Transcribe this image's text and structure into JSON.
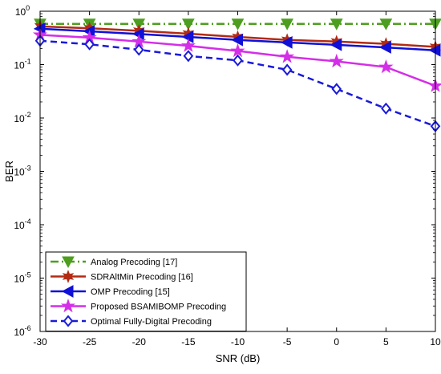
{
  "chart_data": {
    "type": "line",
    "xlabel": "SNR (dB)",
    "ylabel": "BER",
    "xlim": [
      -30,
      10
    ],
    "ylim": [
      1e-06,
      1
    ],
    "yscale": "log",
    "grid": false,
    "legend_position": "bottom-left",
    "x": [
      -30,
      -25,
      -20,
      -15,
      -10,
      -5,
      0,
      5,
      10
    ],
    "x_ticks": [
      "-30",
      "-25",
      "-20",
      "-15",
      "-10",
      "-5",
      "0",
      "5",
      "10"
    ],
    "y_ticks": [
      {
        "value": 1e-06,
        "base": "10",
        "exp": "-6"
      },
      {
        "value": 1e-05,
        "base": "10",
        "exp": "-5"
      },
      {
        "value": 0.0001,
        "base": "10",
        "exp": "-4"
      },
      {
        "value": 0.001,
        "base": "10",
        "exp": "-3"
      },
      {
        "value": 0.01,
        "base": "10",
        "exp": "-2"
      },
      {
        "value": 0.1,
        "base": "10",
        "exp": "-1"
      },
      {
        "value": 1,
        "base": "10",
        "exp": "0"
      }
    ],
    "series": [
      {
        "name": "Analog Precoding [17]",
        "color": "#4d9e1f",
        "marker": "triangle-down",
        "dash": "dashdot",
        "values": [
          0.58,
          0.58,
          0.58,
          0.58,
          0.58,
          0.58,
          0.58,
          0.58,
          0.58
        ]
      },
      {
        "name": "SDRAltMin Precoding [16]",
        "color": "#b22a14",
        "marker": "hexagram",
        "dash": "solid",
        "values": [
          0.52,
          0.48,
          0.43,
          0.38,
          0.33,
          0.29,
          0.27,
          0.245,
          0.215
        ]
      },
      {
        "name": "OMP Precoding [15]",
        "color": "#1010d8",
        "marker": "triangle-left",
        "dash": "solid",
        "values": [
          0.47,
          0.42,
          0.375,
          0.33,
          0.29,
          0.26,
          0.235,
          0.21,
          0.185
        ]
      },
      {
        "name": "Proposed BSAMIBOMP Precoding",
        "color": "#d42ee8",
        "marker": "pentagram",
        "dash": "solid",
        "values": [
          0.36,
          0.32,
          0.27,
          0.225,
          0.18,
          0.14,
          0.115,
          0.09,
          0.04
        ]
      },
      {
        "name": "Optimal Fully-Digital Precoding",
        "color": "#1a1ad8",
        "marker": "diamond",
        "dash": "dashed",
        "values": [
          0.28,
          0.24,
          0.19,
          0.145,
          0.12,
          0.08,
          0.035,
          0.015,
          0.007
        ]
      }
    ]
  }
}
